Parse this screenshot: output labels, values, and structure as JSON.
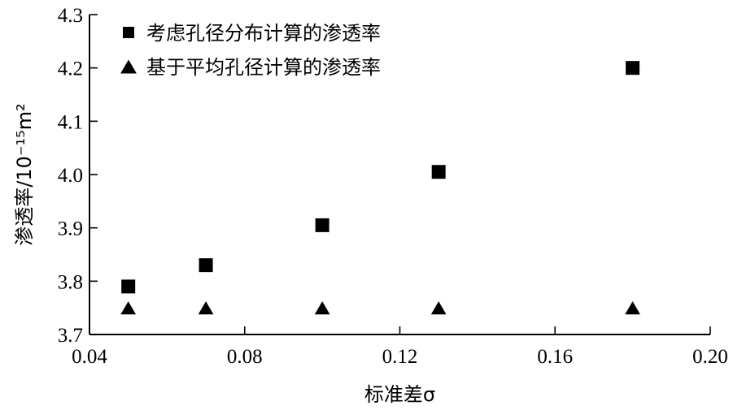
{
  "chart_data": {
    "type": "scatter",
    "xlabel": "标准差σ",
    "ylabel": "渗透率/10⁻¹⁵m²",
    "xlim": [
      0.04,
      0.2
    ],
    "ylim": [
      3.7,
      4.3
    ],
    "x_ticks": [
      "0.04",
      "0.08",
      "0.12",
      "0.16",
      "0.20"
    ],
    "y_ticks": [
      "3.7",
      "3.8",
      "3.9",
      "4.0",
      "4.1",
      "4.2",
      "4.3"
    ],
    "legend_position": "top-left",
    "grid": false,
    "series": [
      {
        "name": "考虑孔径分布计算的渗透率",
        "marker": "square",
        "color": "#000000",
        "x": [
          0.05,
          0.07,
          0.1,
          0.13,
          0.18
        ],
        "y": [
          3.79,
          3.83,
          3.905,
          4.005,
          4.2
        ]
      },
      {
        "name": "基于平均孔径计算的渗透率",
        "marker": "triangle",
        "color": "#000000",
        "x": [
          0.05,
          0.07,
          0.1,
          0.13,
          0.18
        ],
        "y": [
          3.75,
          3.75,
          3.75,
          3.75,
          3.75
        ]
      }
    ]
  }
}
